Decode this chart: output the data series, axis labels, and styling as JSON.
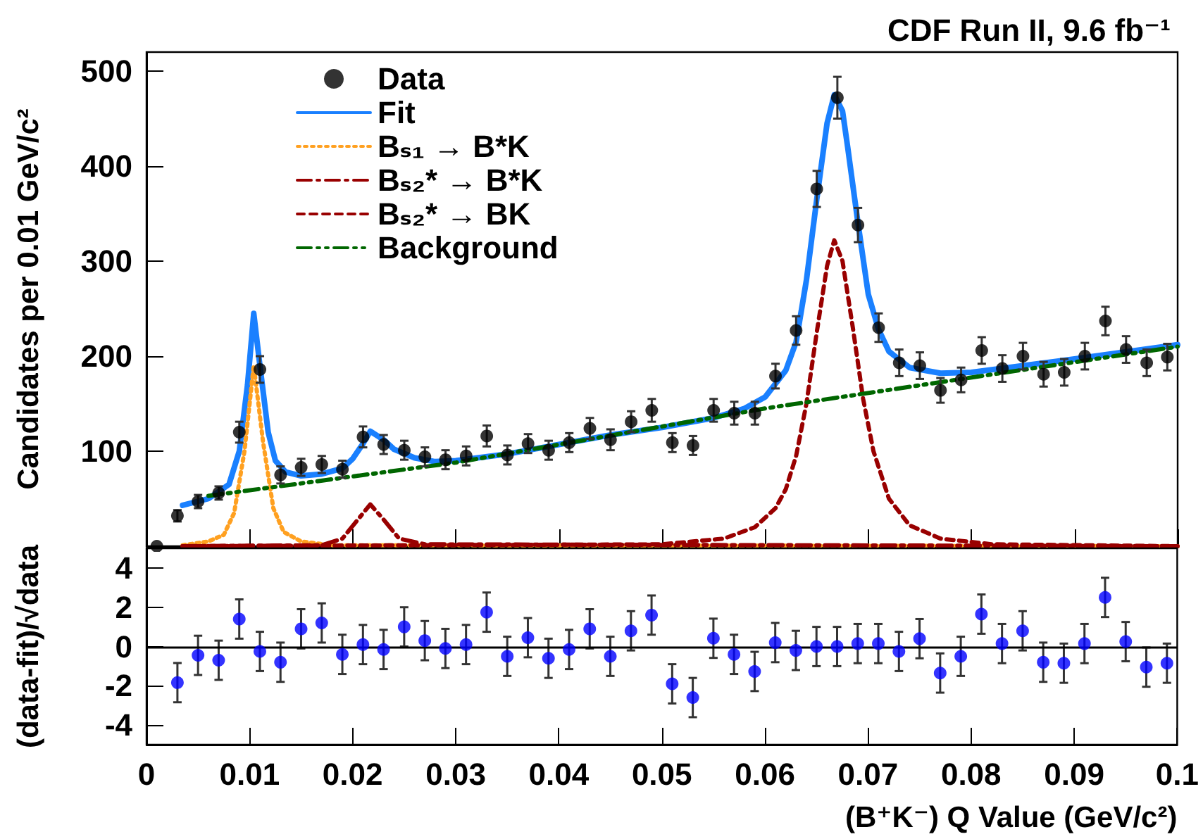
{
  "chart_data": [
    {
      "type": "line",
      "title": "CDF Run II, 9.6 fb⁻¹",
      "ylabel": "Candidates per 0.01 GeV/c²",
      "legend": "top left",
      "tick_labels": "y",
      "xlim": [
        0,
        0.1
      ],
      "xticks": [
        0,
        0.01,
        0.02,
        0.03,
        0.04,
        0.05,
        0.06,
        0.07,
        0.08,
        0.09,
        0.1
      ],
      "ylim": [
        0,
        520
      ],
      "yticks": [
        100,
        200,
        300,
        400,
        500
      ],
      "series": [
        {
          "name": "Data",
          "type": "scatter",
          "marker": "circle",
          "color": "#000000",
          "x": [
            0.001,
            0.003,
            0.005,
            0.007,
            0.009,
            0.011,
            0.013,
            0.015,
            0.017,
            0.019,
            0.021,
            0.023,
            0.025,
            0.027,
            0.029,
            0.031,
            0.033,
            0.035,
            0.037,
            0.039,
            0.041,
            0.043,
            0.045,
            0.047,
            0.049,
            0.051,
            0.053,
            0.055,
            0.057,
            0.059,
            0.061,
            0.063,
            0.065,
            0.067,
            0.069,
            0.071,
            0.073,
            0.075,
            0.077,
            0.079,
            0.081,
            0.083,
            0.085,
            0.087,
            0.089,
            0.091,
            0.093,
            0.095,
            0.097,
            0.099
          ],
          "values": [
            0,
            32,
            47,
            56,
            120,
            186,
            75,
            83,
            86,
            81,
            115,
            107,
            101,
            94,
            91,
            95,
            116,
            96,
            108,
            101,
            109,
            124,
            112,
            131,
            143,
            109,
            106,
            143,
            140,
            140,
            179,
            227,
            376,
            472,
            338,
            230,
            193,
            190,
            164,
            175,
            206,
            187,
            200,
            181,
            183,
            200,
            237,
            207,
            193,
            199
          ],
          "errors": [
            null,
            6,
            7,
            7,
            11,
            14,
            9,
            9,
            9,
            9,
            11,
            10,
            10,
            10,
            10,
            10,
            11,
            10,
            10,
            10,
            10,
            11,
            11,
            11,
            12,
            10,
            10,
            12,
            12,
            12,
            13,
            15,
            19,
            22,
            18,
            15,
            14,
            14,
            13,
            13,
            14,
            14,
            14,
            13,
            14,
            14,
            15,
            14,
            14,
            14
          ]
        },
        {
          "name": "Fit",
          "type": "line",
          "line_style": "solid",
          "color": "#1a80ff",
          "x": [
            0.0035,
            0.006,
            0.008,
            0.009,
            0.0098,
            0.0104,
            0.011,
            0.0118,
            0.0125,
            0.0135,
            0.015,
            0.017,
            0.019,
            0.02,
            0.021,
            0.0217,
            0.023,
            0.024,
            0.026,
            0.028,
            0.03,
            0.035,
            0.04,
            0.045,
            0.05,
            0.055,
            0.058,
            0.06,
            0.062,
            0.063,
            0.064,
            0.065,
            0.066,
            0.0667,
            0.0675,
            0.068,
            0.069,
            0.07,
            0.071,
            0.072,
            0.074,
            0.077,
            0.08,
            0.09,
            0.1
          ],
          "values": [
            43,
            50,
            65,
            100,
            170,
            245,
            190,
            120,
            90,
            78,
            74,
            76,
            82,
            92,
            108,
            121,
            112,
            102,
            93,
            89,
            90,
            97,
            107,
            117,
            125,
            135,
            145,
            157,
            185,
            215,
            280,
            365,
            445,
            475,
            458,
            420,
            340,
            265,
            228,
            205,
            188,
            182,
            183,
            197,
            212
          ]
        },
        {
          "name": "Bₛ₁ → B*K",
          "type": "line",
          "line_style": "dotted",
          "color": "#ffa020",
          "x": [
            0.0035,
            0.006,
            0.0075,
            0.0085,
            0.0095,
            0.0104,
            0.0113,
            0.0123,
            0.0133,
            0.015,
            0.018,
            0.1
          ],
          "values": [
            1,
            5,
            12,
            35,
            100,
            190,
            110,
            40,
            15,
            5,
            1,
            0
          ]
        },
        {
          "name": "Bₛ₂* → B*K",
          "type": "line",
          "line_style": "dashdot",
          "color": "#990000",
          "x": [
            0.0035,
            0.017,
            0.019,
            0.0205,
            0.0217,
            0.023,
            0.0245,
            0.027,
            0.1
          ],
          "values": [
            0,
            1,
            8,
            28,
            44,
            28,
            8,
            2,
            0
          ]
        },
        {
          "name": "Bₛ₂* → BK",
          "type": "line",
          "line_style": "dashed",
          "color": "#990000",
          "x": [
            0.0035,
            0.05,
            0.056,
            0.059,
            0.061,
            0.062,
            0.063,
            0.064,
            0.065,
            0.066,
            0.0667,
            0.0675,
            0.0685,
            0.0695,
            0.0705,
            0.072,
            0.074,
            0.077,
            0.082,
            0.1
          ],
          "values": [
            0,
            2,
            8,
            20,
            40,
            60,
            95,
            150,
            225,
            295,
            322,
            300,
            230,
            155,
            100,
            50,
            22,
            8,
            2,
            0
          ]
        },
        {
          "name": "Background",
          "type": "line",
          "line_style": "dashdotdot",
          "color": "#006600",
          "x": [
            0.006,
            0.03,
            0.06,
            0.1
          ],
          "values": [
            53,
            88,
            145,
            210
          ]
        }
      ]
    },
    {
      "type": "scatter",
      "ylabel": "(data-fit)/√data",
      "xlabel": "(B⁺K⁻) Q Value (GeV/c²)",
      "xlim": [
        0,
        0.1
      ],
      "xticks": [
        0,
        0.01,
        0.02,
        0.03,
        0.04,
        0.05,
        0.06,
        0.07,
        0.08,
        0.09,
        0.1
      ],
      "ylim": [
        -5,
        5
      ],
      "yticks": [
        -4,
        -2,
        0,
        2,
        4
      ],
      "marker": "circle",
      "color": "#0000ff",
      "ref_lines": [
        {
          "axis": "y",
          "value": 0,
          "color": "#000000"
        }
      ],
      "x": [
        0.003,
        0.005,
        0.007,
        0.009,
        0.011,
        0.013,
        0.015,
        0.017,
        0.019,
        0.021,
        0.023,
        0.025,
        0.027,
        0.029,
        0.031,
        0.033,
        0.035,
        0.037,
        0.039,
        0.041,
        0.043,
        0.045,
        0.047,
        0.049,
        0.051,
        0.053,
        0.055,
        0.057,
        0.059,
        0.061,
        0.063,
        0.065,
        0.067,
        0.069,
        0.071,
        0.073,
        0.075,
        0.077,
        0.079,
        0.081,
        0.083,
        0.085,
        0.087,
        0.089,
        0.091,
        0.093,
        0.095,
        0.097,
        0.099
      ],
      "values": [
        -1.84,
        -0.45,
        -0.7,
        1.4,
        -0.25,
        -0.8,
        0.9,
        1.2,
        -0.4,
        0.1,
        -0.15,
        1.0,
        0.3,
        -0.1,
        0.1,
        1.75,
        -0.5,
        0.45,
        -0.6,
        -0.15,
        0.9,
        -0.5,
        0.8,
        1.6,
        -1.9,
        -2.6,
        0.42,
        -0.4,
        -1.27,
        0.2,
        -0.2,
        0,
        0,
        0.15,
        0.15,
        -0.25,
        0.4,
        -1.35,
        -0.5,
        1.65,
        0.15,
        0.8,
        -0.8,
        -0.85,
        0.15,
        2.5,
        0.25,
        -1.05,
        -0.85
      ],
      "errors": [
        1,
        1,
        1,
        1,
        1,
        1,
        1,
        1,
        1,
        1,
        1,
        1,
        1,
        1,
        1,
        1,
        1,
        1,
        1,
        1,
        1,
        1,
        1,
        1,
        1,
        1,
        1,
        1,
        1,
        1,
        1,
        1,
        1,
        1,
        1,
        1,
        1,
        1,
        1,
        1,
        1,
        1,
        1,
        1,
        1,
        1,
        1,
        1,
        1
      ]
    }
  ]
}
